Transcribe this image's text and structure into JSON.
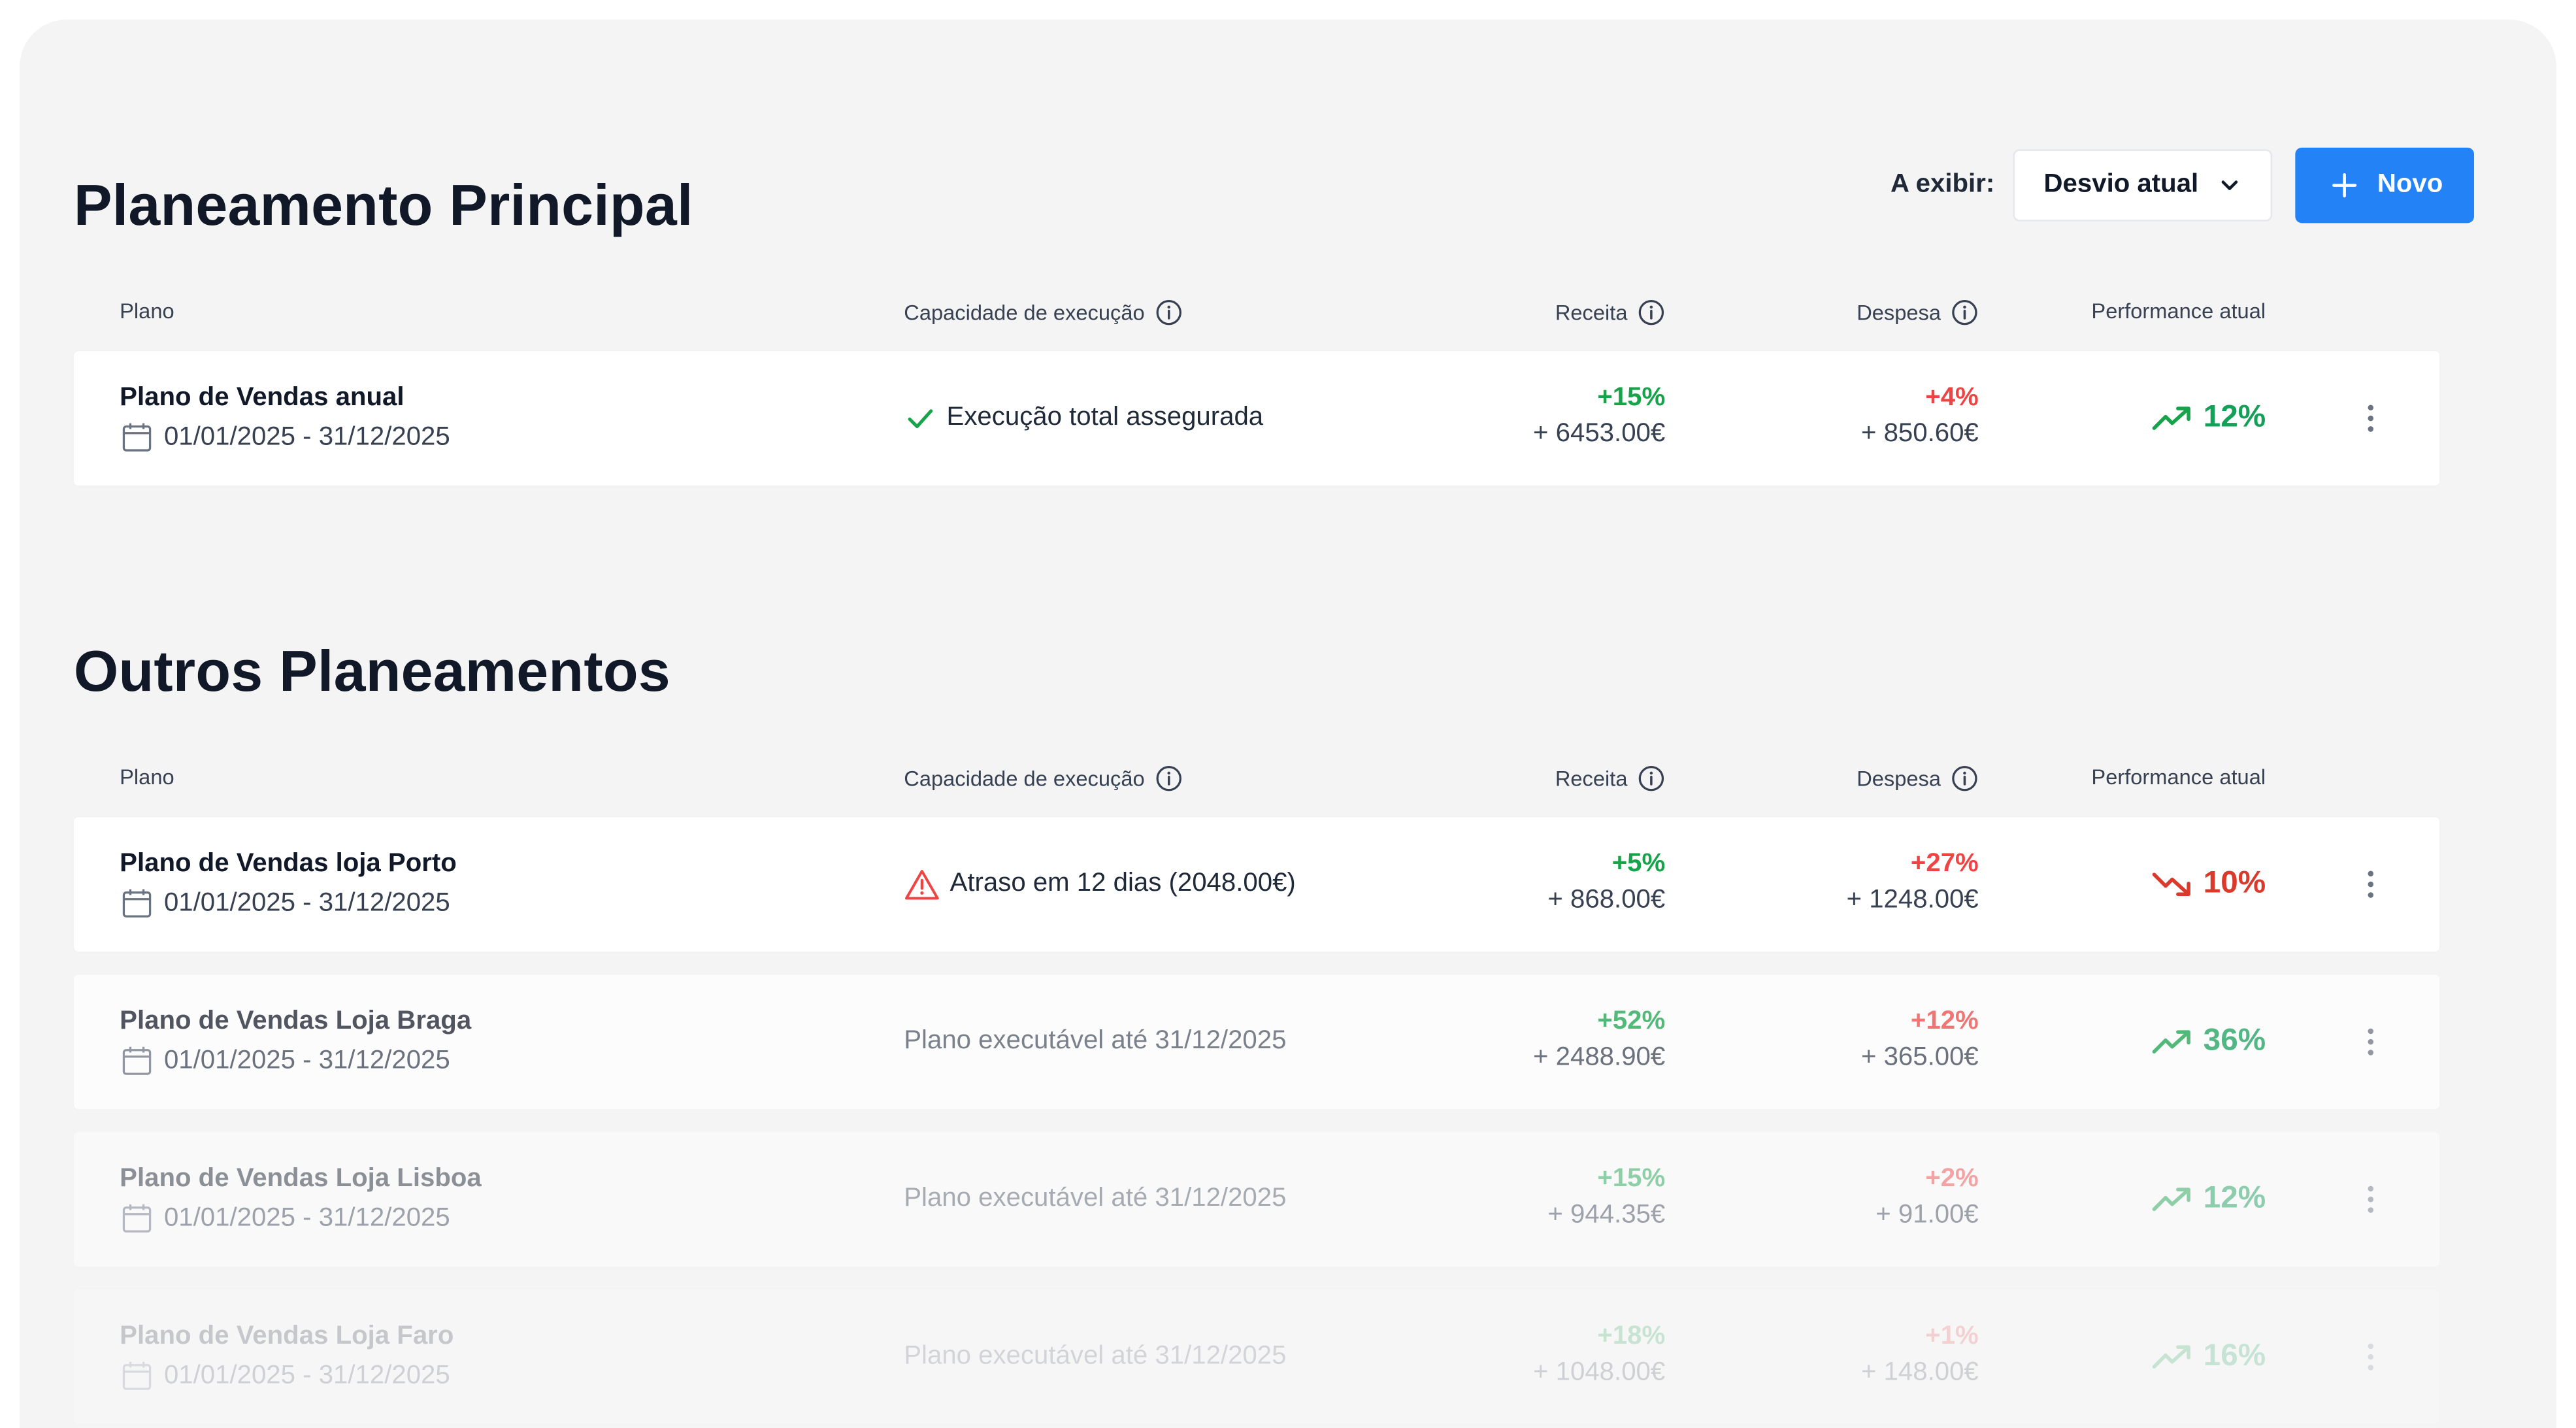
{
  "main_section": {
    "title": "Planeamento Principal"
  },
  "toolbar": {
    "label": "A exibir:",
    "select_value": "Desvio atual",
    "new_button_label": "Novo"
  },
  "table_headers": {
    "plano": "Plano",
    "capacidade": "Capacidade de execução",
    "receita": "Receita",
    "despesa": "Despesa",
    "performance": "Performance atual"
  },
  "main_plans": [
    {
      "name": "Plano de Vendas anual",
      "dates": "01/01/2025 - 31/12/2025",
      "capacity": "Execução total assegurada",
      "capacity_icon": "check-icon",
      "receita_pct": "+15%",
      "receita_amount": "+ 6453.00€",
      "despesa_pct": "+4%",
      "despesa_amount": "+ 850.60€",
      "performance": "12%",
      "trend": "up"
    }
  ],
  "other_section": {
    "title": "Outros Planeamentos"
  },
  "other_plans": [
    {
      "name": "Plano de Vendas loja Porto",
      "dates": "01/01/2025 - 31/12/2025",
      "capacity": "Atraso em 12 dias (2048.00€)",
      "capacity_icon": "warning-icon",
      "receita_pct": "+5%",
      "receita_amount": "+ 868.00€",
      "despesa_pct": "+27%",
      "despesa_amount": "+ 1248.00€",
      "performance": "10%",
      "trend": "down"
    },
    {
      "name": "Plano de Vendas Loja Braga",
      "dates": "01/01/2025 - 31/12/2025",
      "capacity": "Plano executável até 31/12/2025",
      "receita_pct": "+52%",
      "receita_amount": "+ 2488.90€",
      "despesa_pct": "+12%",
      "despesa_amount": "+ 365.00€",
      "performance": "36%",
      "trend": "up"
    },
    {
      "name": "Plano de Vendas Loja Lisboa",
      "dates": "01/01/2025 - 31/12/2025",
      "capacity": "Plano executável até 31/12/2025",
      "receita_pct": "+15%",
      "receita_amount": "+ 944.35€",
      "despesa_pct": "+2%",
      "despesa_amount": "+ 91.00€",
      "performance": "12%",
      "trend": "up"
    },
    {
      "name": "Plano de Vendas Loja Faro",
      "dates": "01/01/2025 - 31/12/2025",
      "capacity": "Plano executável até 31/12/2025",
      "receita_pct": "+18%",
      "receita_amount": "+ 1048.00€",
      "despesa_pct": "+1%",
      "despesa_amount": "+ 148.00€",
      "performance": "16%",
      "trend": "up"
    }
  ],
  "colors": {
    "accent": "#2383f6",
    "positive": "#16a34a",
    "negative": "#ef4444",
    "background": "#f4f4f5"
  }
}
